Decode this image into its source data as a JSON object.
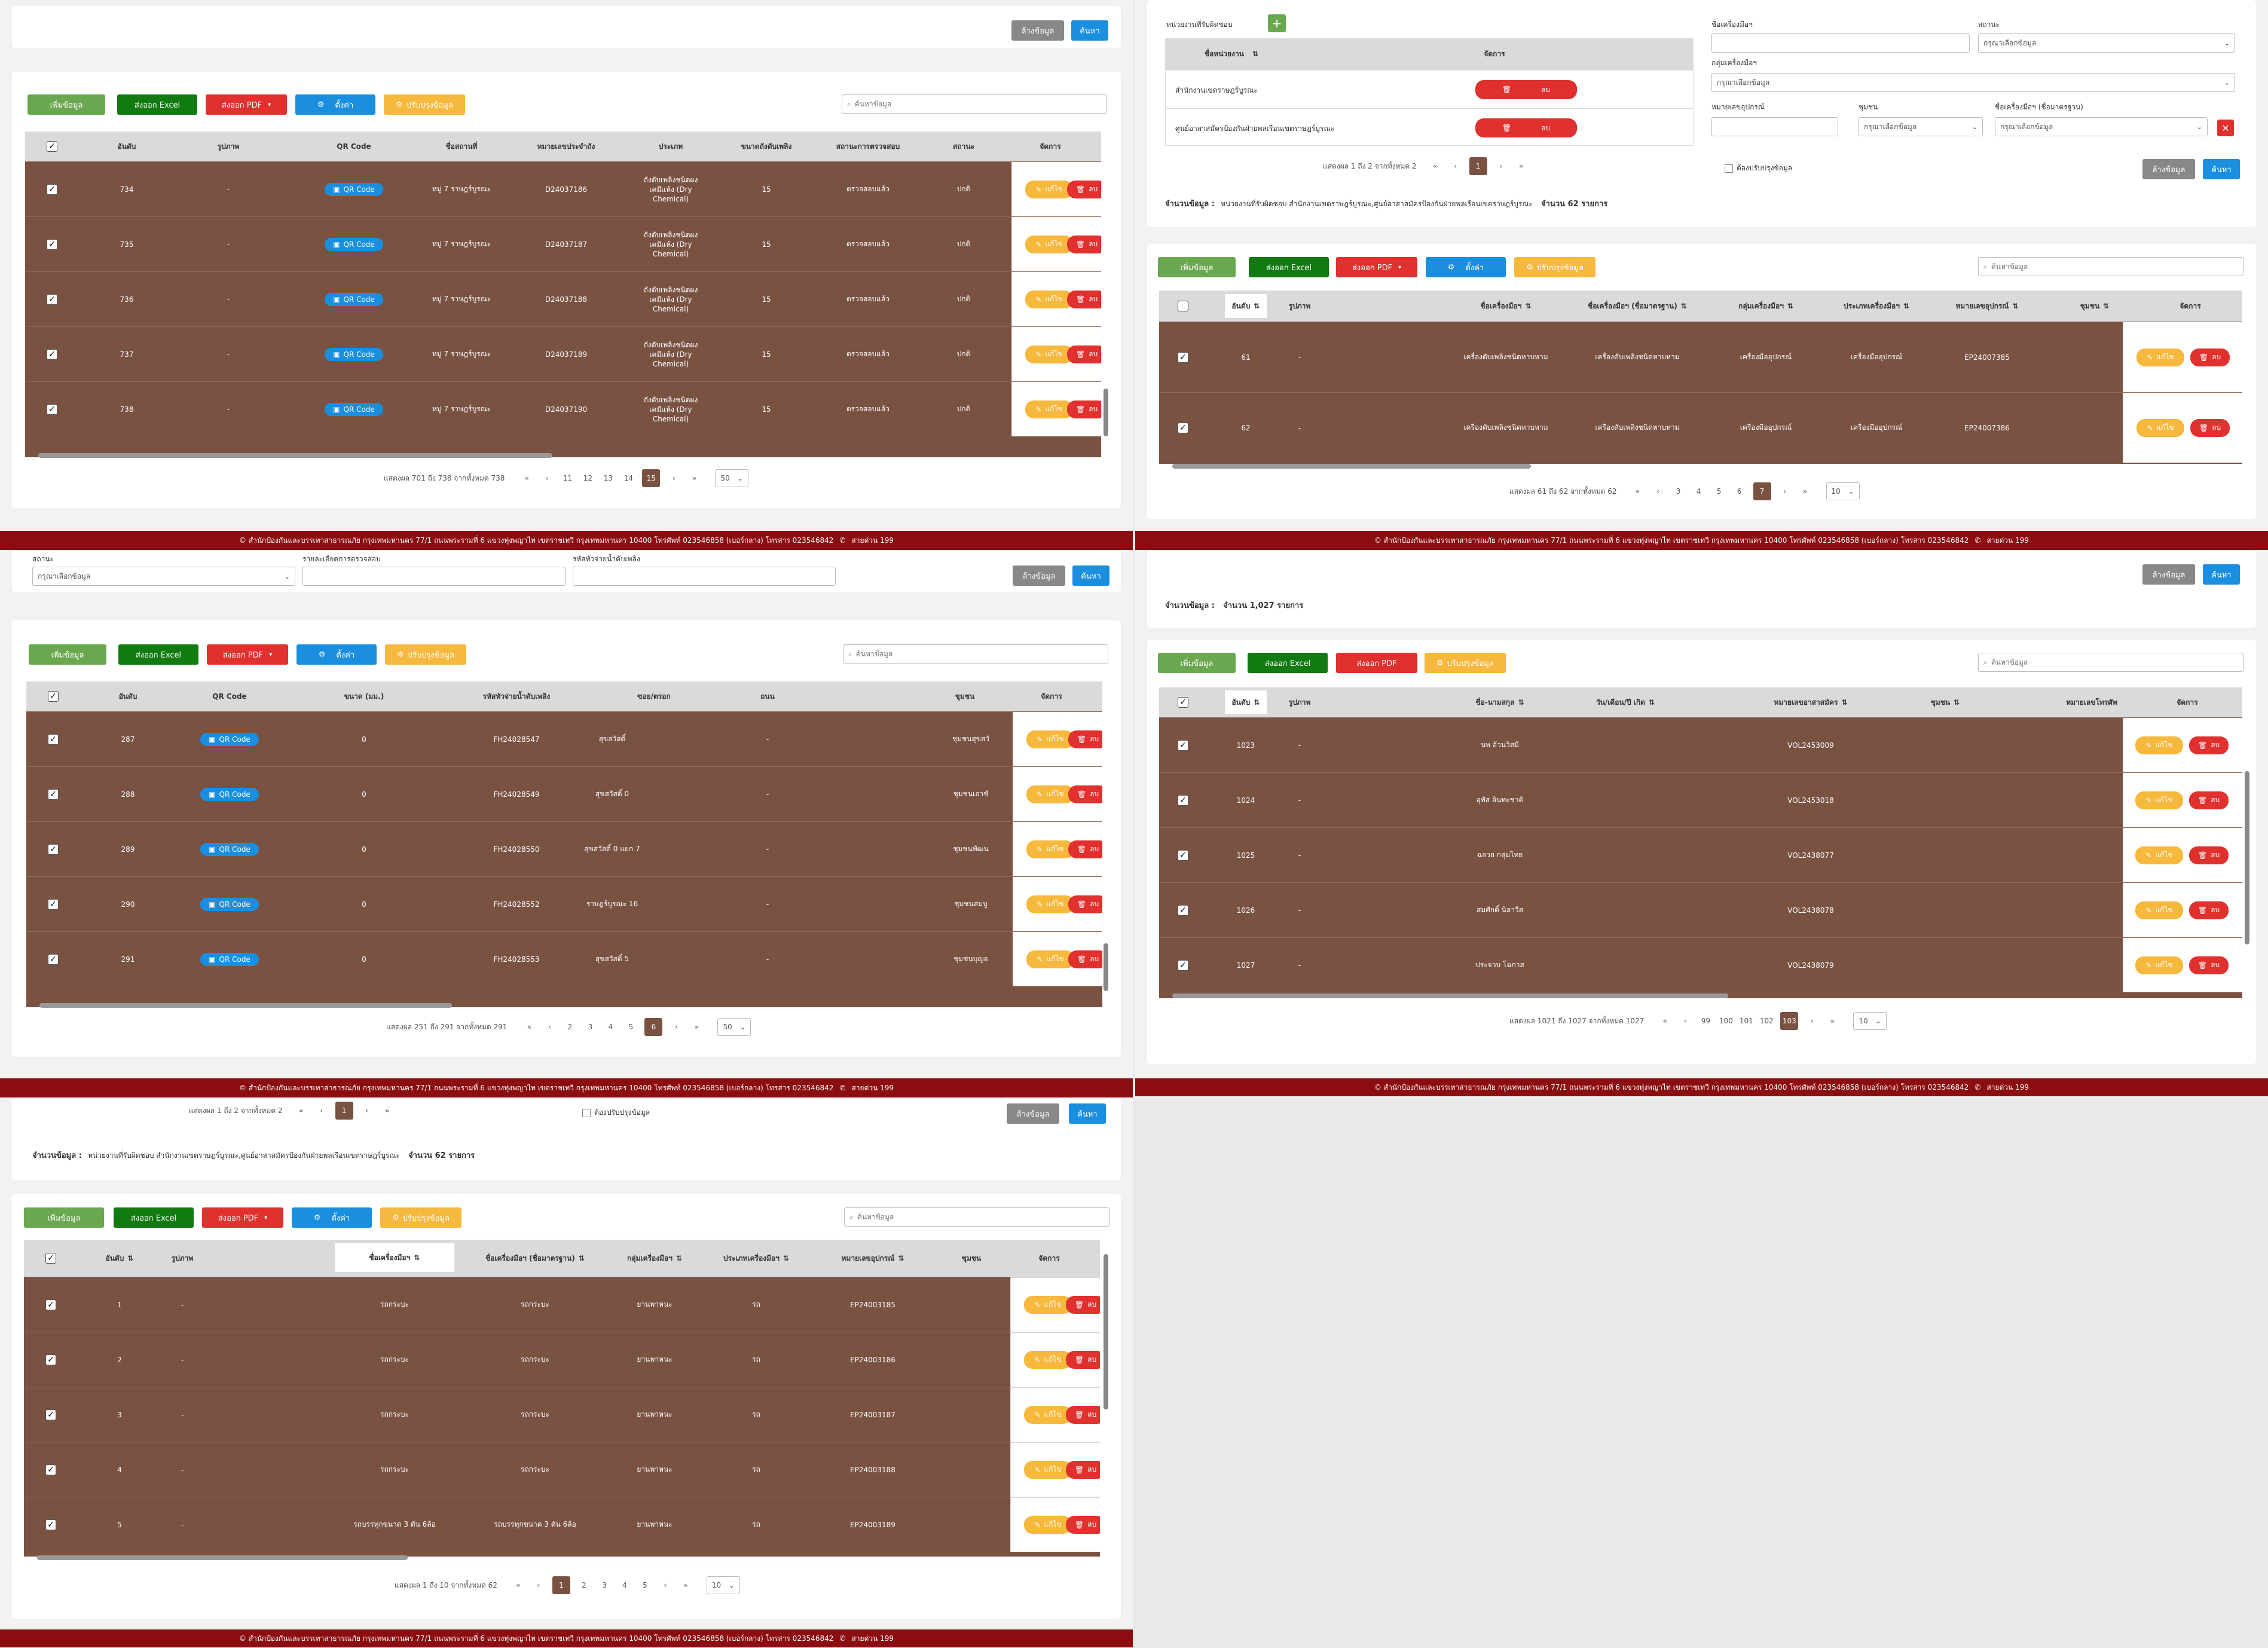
{
  "common": {
    "clear": "ล้างข้อมูล",
    "search": "ค้นหา",
    "add": "เพิ่มข้อมูล",
    "excel": "ส่งออก Excel",
    "pdf": "ส่งออก PDF",
    "settings": "ตั้งค่า",
    "update": "ปรับปรุงข้อมูล",
    "search_ph": "ค้นหาข้อมูล",
    "qr": "QR Code",
    "edit": "แก้ไข",
    "del": "ลบ",
    "select_ph": "กรุณาเลือกข้อมูล",
    "footer": "© สำนักป้องกันและบรรเทาสาธารณภัย กรุงเทพมหานคร 77/1 ถนนพระรามที่ 6 แขวงทุ่งพญาไท เขตราชเทวี กรุงเทพมหานคร 10400 โทรศัพท์ 023546858 (เบอร์กลาง) โทรสาร 023546842",
    "hotline": "สายด่วน 199"
  },
  "p1": {
    "headers": [
      "อันดับ",
      "รูปภาพ",
      "QR Code",
      "ชื่อสถานที่",
      "หมายเลขประจำถัง",
      "ประเภท",
      "ขนาดถังดับเพลิง",
      "สถานะการตรวจสอบ",
      "สถานะ",
      "จัดการ"
    ],
    "rows": [
      {
        "n": "734",
        "img": "-",
        "place": "หมู่ 7 ราษฎร์บูรณะ",
        "code": "D24037186",
        "type": "ถังดับเพลิงชนิดผงเคมีแห้ง (Dry Chemical)",
        "size": "15",
        "chk": "ตรวจสอบแล้ว",
        "st": "ปกติ"
      },
      {
        "n": "735",
        "img": "-",
        "place": "หมู่ 7 ราษฎร์บูรณะ",
        "code": "D24037187",
        "type": "ถังดับเพลิงชนิดผงเคมีแห้ง (Dry Chemical)",
        "size": "15",
        "chk": "ตรวจสอบแล้ว",
        "st": "ปกติ"
      },
      {
        "n": "736",
        "img": "-",
        "place": "หมู่ 7 ราษฎร์บูรณะ",
        "code": "D24037188",
        "type": "ถังดับเพลิงชนิดผงเคมีแห้ง (Dry Chemical)",
        "size": "15",
        "chk": "ตรวจสอบแล้ว",
        "st": "ปกติ"
      },
      {
        "n": "737",
        "img": "-",
        "place": "หมู่ 7 ราษฎร์บูรณะ",
        "code": "D24037189",
        "type": "ถังดับเพลิงชนิดผงเคมีแห้ง (Dry Chemical)",
        "size": "15",
        "chk": "ตรวจสอบแล้ว",
        "st": "ปกติ"
      },
      {
        "n": "738",
        "img": "-",
        "place": "หมู่ 7 ราษฎร์บูรณะ",
        "code": "D24037190",
        "type": "ถังดับเพลิงชนิดผงเคมีแห้ง (Dry Chemical)",
        "size": "15",
        "chk": "ตรวจสอบแล้ว",
        "st": "ปกติ"
      }
    ],
    "summary": "แสดงผล 701 ถึง 738 จากทั้งหมด 738",
    "pages": [
      "«",
      "‹",
      "11",
      "12",
      "13",
      "14",
      "15",
      "›",
      "»"
    ],
    "cur": "15",
    "size": "50"
  },
  "p2": {
    "unit_label": "หน่วยงานที่รับผิดชอบ",
    "unit_head": "ชื่อหน่วยงาน",
    "manage": "จัดการ",
    "units": [
      "สำนักงานเขตราษฎร์บูรณะ",
      "ศูนย์อาสาสมัครป้องกันฝ่ายพลเรือนเขตราษฎร์บูรณะ"
    ],
    "small_summary": "แสดงผล 1 ถึง 2 จากทั้งหมด 2",
    "small_pages": [
      "«",
      "‹",
      "1",
      "›",
      "»"
    ],
    "f_name": "ชื่อเครื่องมือฯ",
    "f_status": "สถานะ",
    "f_group": "กลุ่มเครื่องมือฯ",
    "f_code": "หมายเลขอุปกรณ์",
    "f_comm": "ชุมชน",
    "f_std": "ชื่อเครื่องมือฯ (ชื่อมาตรฐาน)",
    "f_need": "ต้องปรับปรุงข้อมูล",
    "count_label": "จำนวนข้อมูล :",
    "count_text": "หน่วยงานที่รับผิดชอบ สำนักงานเขตราษฎร์บูรณะ,ศูนย์อาสาสมัครป้องกันฝ่ายพลเรือนเขตราษฎร์บูรณะ",
    "count_n": "จำนวน 62 รายการ",
    "headers": [
      "อันดับ",
      "รูปภาพ",
      "ชื่อเครื่องมือฯ",
      "ชื่อเครื่องมือฯ (ชื่อมาตรฐาน)",
      "กลุ่มเครื่องมือฯ",
      "ประเภทเครื่องมือฯ",
      "หมายเลขอุปกรณ์",
      "ชุมชน",
      "จัดการ"
    ],
    "rows": [
      {
        "n": "61",
        "img": "-",
        "name": "เครื่องดับเพลิงชนิดหาบหาม",
        "std": "เครื่องดับเพลิงชนิดหาบหาม",
        "grp": "เครื่องมืออุปกรณ์",
        "typ": "เครื่องมืออุปกรณ์",
        "code": "EP24007385"
      },
      {
        "n": "62",
        "img": "-",
        "name": "เครื่องดับเพลิงชนิดหาบหาม",
        "std": "เครื่องดับเพลิงชนิดหาบหาม",
        "grp": "เครื่องมืออุปกรณ์",
        "typ": "เครื่องมืออุปกรณ์",
        "code": "EP24007386"
      }
    ],
    "summary": "แสดงผล 61 ถึง 62 จากทั้งหมด 62",
    "pages": [
      "«",
      "‹",
      "3",
      "4",
      "5",
      "6",
      "7",
      "›",
      "»"
    ],
    "cur": "7",
    "size": "10"
  },
  "p3": {
    "f_status": "สถานะ",
    "f_detail": "รายละเอียดการตรวจสอบ",
    "f_code": "รหัสหัวจ่ายน้ำดับเพลิง",
    "headers": [
      "อันดับ",
      "QR Code",
      "ขนาด (มม.)",
      "รหัสหัวจ่ายน้ำดับเพลิง",
      "ซอย/ตรอก",
      "ถนน",
      "ชุมชน",
      "จัดการ"
    ],
    "rows": [
      {
        "n": "287",
        "size": "0",
        "code": "FH24028547",
        "soi": "สุขสวัสดิ์",
        "road": "-",
        "comm": "ชุมชนสุขสวั"
      },
      {
        "n": "288",
        "size": "0",
        "code": "FH24028549",
        "soi": "สุขสวัสดิ์ 0",
        "road": "-",
        "comm": "ชุมชนเอาชั"
      },
      {
        "n": "289",
        "size": "0",
        "code": "FH24028550",
        "soi": "สุขสวัสดิ์ 0 แยก 7",
        "road": "-",
        "comm": "ชุมชนพัฒน"
      },
      {
        "n": "290",
        "size": "0",
        "code": "FH24028552",
        "soi": "ราษฎร์บูรณะ 16",
        "road": "-",
        "comm": "ชุมชนสมบู"
      },
      {
        "n": "291",
        "size": "0",
        "code": "FH24028553",
        "soi": "สุขสวัสดิ์ 5",
        "road": "-",
        "comm": "ชุมชนบุญอ"
      }
    ],
    "summary": "แสดงผล 251 ถึง 291 จากทั้งหมด 291",
    "pages": [
      "«",
      "‹",
      "2",
      "3",
      "4",
      "5",
      "6",
      "›",
      "»"
    ],
    "cur": "6",
    "size": "50"
  },
  "p4": {
    "count_label": "จำนวนข้อมูล :",
    "count_n": "จำนวน 1,027 รายการ",
    "headers": [
      "อันดับ",
      "รูปภาพ",
      "ชื่อ-นามสกุล",
      "วัน/เดือน/ปี เกิด",
      "หมายเลขอาสาสมัคร",
      "ชุมชน",
      "หมายเลขโทรศัพ",
      "จัดการ"
    ],
    "rows": [
      {
        "n": "1023",
        "img": "-",
        "name": "นพ อ้วนวิสมี",
        "code": "VOL2453009"
      },
      {
        "n": "1024",
        "img": "-",
        "name": "อุทัส อินทะชาติ",
        "code": "VOL2453018"
      },
      {
        "n": "1025",
        "img": "-",
        "name": "ฉลวย กลุ่มไทย",
        "code": "VOL2438077"
      },
      {
        "n": "1026",
        "img": "-",
        "name": "สมศักดิ์ นิลาวีส",
        "code": "VOL2438078"
      },
      {
        "n": "1027",
        "img": "-",
        "name": "ประจวบ โฉกาส",
        "code": "VOL2438079"
      }
    ],
    "summary": "แสดงผล 1021 ถึง 1027 จากทั้งหมด 1027",
    "pages": [
      "«",
      "‹",
      "99",
      "100",
      "101",
      "102",
      "103",
      "›",
      "»"
    ],
    "cur": "103",
    "size": "10"
  },
  "p5": {
    "small_summary": "แสดงผล 1 ถึง 2 จากทั้งหมด 2",
    "small_pages": [
      "«",
      "‹",
      "1",
      "›",
      "»"
    ],
    "need": "ต้องปรับปรุงข้อมูล",
    "count_label": "จำนวนข้อมูล :",
    "count_text": "หน่วยงานที่รับผิดชอบ สำนักงานเขตราษฎร์บูรณะ,ศูนย์อาสาสมัครป้องกันฝ่ายพลเรือนเขตราษฎร์บูรณะ",
    "count_n": "จำนวน 62 รายการ",
    "headers": [
      "อันดับ",
      "รูปภาพ",
      "ชื่อเครื่องมือฯ",
      "ชื่อเครื่องมือฯ (ชื่อมาตรฐาน)",
      "กลุ่มเครื่องมือฯ",
      "ประเภทเครื่องมือฯ",
      "หมายเลขอุปกรณ์",
      "ชุมชน",
      "จัดการ"
    ],
    "rows": [
      {
        "n": "1",
        "img": "-",
        "name": "รถกระบะ",
        "std": "รถกระบะ",
        "grp": "ยานพาหนะ",
        "typ": "รถ",
        "code": "EP24003185"
      },
      {
        "n": "2",
        "img": "-",
        "name": "รถกระบะ",
        "std": "รถกระบะ",
        "grp": "ยานพาหนะ",
        "typ": "รถ",
        "code": "EP24003186"
      },
      {
        "n": "3",
        "img": "-",
        "name": "รถกระบะ",
        "std": "รถกระบะ",
        "grp": "ยานพาหนะ",
        "typ": "รถ",
        "code": "EP24003187"
      },
      {
        "n": "4",
        "img": "-",
        "name": "รถกระบะ",
        "std": "รถกระบะ",
        "grp": "ยานพาหนะ",
        "typ": "รถ",
        "code": "EP24003188"
      },
      {
        "n": "5",
        "img": "-",
        "name": "รถบรรทุกขนาด 3 ตัน 6ล้อ",
        "std": "รถบรรทุกขนาด 3 ตัน 6ล้อ",
        "grp": "ยานพาหนะ",
        "typ": "รถ",
        "code": "EP24003189"
      }
    ],
    "summary": "แสดงผล 1 ถึง 10 จากทั้งหมด 62",
    "pages": [
      "«",
      "‹",
      "1",
      "2",
      "3",
      "4",
      "5",
      "›",
      "»"
    ],
    "cur": "1",
    "size": "10"
  }
}
